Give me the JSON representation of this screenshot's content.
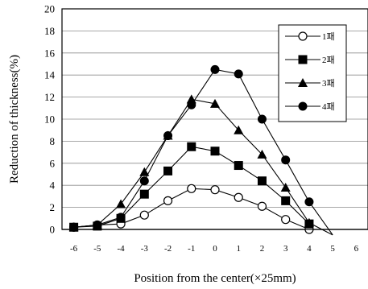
{
  "chart_data": {
    "type": "line",
    "title": "",
    "xlabel": "Position from the center(×25mm)",
    "ylabel": "Reduction of thickness(%)",
    "x": [
      -6,
      -5,
      -4,
      -3,
      -2,
      -1,
      0,
      1,
      2,
      3,
      4,
      5,
      6
    ],
    "xlim": [
      -6.5,
      6.5
    ],
    "ylim": [
      0,
      20
    ],
    "yticks": [
      0,
      2,
      4,
      6,
      8,
      10,
      12,
      14,
      16,
      18,
      20
    ],
    "grid": "horizontal",
    "legend_position": "top-right",
    "series": [
      {
        "name": "1패",
        "marker": "open-circle",
        "x": [
          -6,
          -5,
          -4,
          -3,
          -2,
          -1,
          0,
          1,
          2,
          3,
          4
        ],
        "values": [
          0.2,
          0.4,
          0.5,
          1.3,
          2.6,
          3.7,
          3.6,
          2.9,
          2.1,
          0.9,
          0.0
        ]
      },
      {
        "name": "2패",
        "marker": "filled-square",
        "x": [
          -6,
          -5,
          -4,
          -3,
          -2,
          -1,
          0,
          1,
          2,
          3,
          4
        ],
        "values": [
          0.2,
          0.3,
          1.0,
          3.2,
          5.3,
          7.5,
          7.1,
          5.8,
          4.4,
          2.6,
          0.5
        ]
      },
      {
        "name": "3패",
        "marker": "filled-triangle",
        "x": [
          -6,
          -5,
          -4,
          -3,
          -2,
          -1,
          0,
          1,
          2,
          3,
          4,
          5
        ],
        "values": [
          0.2,
          0.4,
          2.3,
          5.2,
          8.5,
          11.8,
          11.4,
          9.0,
          6.8,
          3.8,
          0.6,
          -0.5
        ]
      },
      {
        "name": "4패",
        "marker": "filled-circle",
        "x": [
          -6,
          -5,
          -4,
          -3,
          -2,
          -1,
          0,
          1,
          2,
          3,
          4,
          5
        ],
        "values": [
          0.2,
          0.4,
          1.1,
          4.4,
          8.5,
          11.3,
          14.5,
          14.1,
          10.0,
          6.3,
          2.5,
          -0.5
        ]
      }
    ]
  }
}
